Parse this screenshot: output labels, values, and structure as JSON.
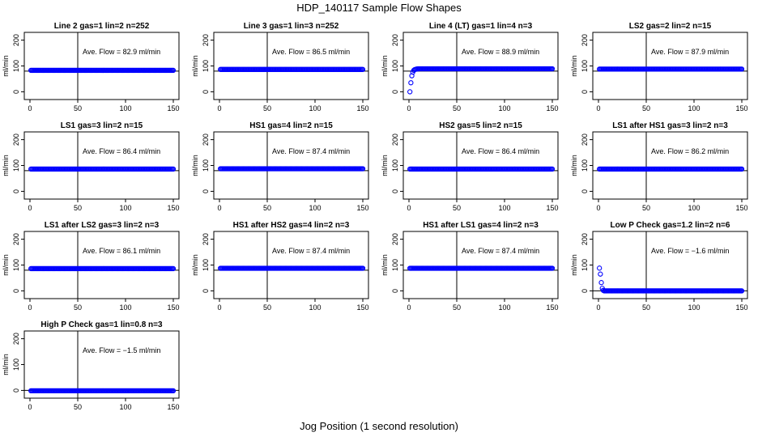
{
  "figure": {
    "title": "HDP_140117  Sample Flow Shapes",
    "xlabel": "Jog Position (1 second resolution)"
  },
  "chart_data": [
    {
      "type": "scatter",
      "title": "Line 2 gas=1 lin=2 n=252",
      "ylabel": "ml/min",
      "annotation": "Ave. Flow =  82.9  ml/min",
      "xlim": [
        0,
        150
      ],
      "ylim": [
        -30,
        230
      ],
      "xticks": [
        0,
        50,
        100,
        150
      ],
      "yticks": [
        0,
        100,
        200
      ],
      "vline": 50,
      "hline": 80,
      "series": [
        {
          "color": "#0000ff",
          "x_range": [
            1,
            150
          ],
          "values": [
            82.9
          ]
        }
      ]
    },
    {
      "type": "scatter",
      "title": "Line 3 gas=1 lin=3 n=252",
      "ylabel": "ml/min",
      "annotation": "Ave. Flow =  86.5  ml/min",
      "xlim": [
        0,
        150
      ],
      "ylim": [
        -30,
        230
      ],
      "xticks": [
        0,
        50,
        100,
        150
      ],
      "yticks": [
        0,
        100,
        200
      ],
      "vline": 50,
      "hline": 80,
      "series": [
        {
          "color": "#0000ff",
          "x_range": [
            1,
            150
          ],
          "values": [
            86.5
          ]
        }
      ]
    },
    {
      "type": "scatter",
      "title": "Line 4 (LT) gas=1 lin=4 n=3",
      "ylabel": "ml/min",
      "annotation": "Ave. Flow =  88.9  ml/min",
      "xlim": [
        0,
        150
      ],
      "ylim": [
        -30,
        230
      ],
      "xticks": [
        0,
        50,
        100,
        150
      ],
      "yticks": [
        0,
        100,
        200
      ],
      "vline": 50,
      "hline": 80,
      "series": [
        {
          "color": "#0000ff",
          "x_range": [
            1,
            150
          ],
          "values": [
            0,
            35,
            62,
            76,
            83,
            86,
            87,
            88,
            88.5,
            89
          ]
        }
      ]
    },
    {
      "type": "scatter",
      "title": "LS2 gas=2 lin=2 n=15",
      "ylabel": "ml/min",
      "annotation": "Ave. Flow =  87.9  ml/min",
      "xlim": [
        0,
        150
      ],
      "ylim": [
        -30,
        230
      ],
      "xticks": [
        0,
        50,
        100,
        150
      ],
      "yticks": [
        0,
        100,
        200
      ],
      "vline": 50,
      "hline": 80,
      "series": [
        {
          "color": "#0000ff",
          "x_range": [
            1,
            150
          ],
          "values": [
            87.9
          ]
        }
      ]
    },
    {
      "type": "scatter",
      "title": "LS1 gas=3 lin=2 n=15",
      "ylabel": "ml/min",
      "annotation": "Ave. Flow =  86.4  ml/min",
      "xlim": [
        0,
        150
      ],
      "ylim": [
        -30,
        230
      ],
      "xticks": [
        0,
        50,
        100,
        150
      ],
      "yticks": [
        0,
        100,
        200
      ],
      "vline": 50,
      "hline": 80,
      "series": [
        {
          "color": "#0000ff",
          "x_range": [
            1,
            150
          ],
          "values": [
            86.4
          ]
        }
      ]
    },
    {
      "type": "scatter",
      "title": "HS1 gas=4 lin=2 n=15",
      "ylabel": "ml/min",
      "annotation": "Ave. Flow =  87.4  ml/min",
      "xlim": [
        0,
        150
      ],
      "ylim": [
        -30,
        230
      ],
      "xticks": [
        0,
        50,
        100,
        150
      ],
      "yticks": [
        0,
        100,
        200
      ],
      "vline": 50,
      "hline": 80,
      "series": [
        {
          "color": "#0000ff",
          "x_range": [
            1,
            150
          ],
          "values": [
            87.4
          ]
        }
      ]
    },
    {
      "type": "scatter",
      "title": "HS2 gas=5 lin=2 n=15",
      "ylabel": "ml/min",
      "annotation": "Ave. Flow =  86.4  ml/min",
      "xlim": [
        0,
        150
      ],
      "ylim": [
        -30,
        230
      ],
      "xticks": [
        0,
        50,
        100,
        150
      ],
      "yticks": [
        0,
        100,
        200
      ],
      "vline": 50,
      "hline": 80,
      "series": [
        {
          "color": "#0000ff",
          "x_range": [
            1,
            150
          ],
          "values": [
            86.4
          ]
        }
      ]
    },
    {
      "type": "scatter",
      "title": "LS1 after HS1 gas=3 lin=2 n=3",
      "ylabel": "ml/min",
      "annotation": "Ave. Flow =  86.2  ml/min",
      "xlim": [
        0,
        150
      ],
      "ylim": [
        -30,
        230
      ],
      "xticks": [
        0,
        50,
        100,
        150
      ],
      "yticks": [
        0,
        100,
        200
      ],
      "vline": 50,
      "hline": 80,
      "series": [
        {
          "color": "#0000ff",
          "x_range": [
            1,
            150
          ],
          "values": [
            86.2
          ]
        }
      ]
    },
    {
      "type": "scatter",
      "title": "LS1 after LS2 gas=3 lin=2 n=3",
      "ylabel": "ml/min",
      "annotation": "Ave. Flow =  86.1  ml/min",
      "xlim": [
        0,
        150
      ],
      "ylim": [
        -30,
        230
      ],
      "xticks": [
        0,
        50,
        100,
        150
      ],
      "yticks": [
        0,
        100,
        200
      ],
      "vline": 50,
      "hline": 80,
      "series": [
        {
          "color": "#0000ff",
          "x_range": [
            1,
            150
          ],
          "values": [
            86.1
          ]
        }
      ]
    },
    {
      "type": "scatter",
      "title": "HS1 after HS2 gas=4 lin=2 n=3",
      "ylabel": "ml/min",
      "annotation": "Ave. Flow =  87.4  ml/min",
      "xlim": [
        0,
        150
      ],
      "ylim": [
        -30,
        230
      ],
      "xticks": [
        0,
        50,
        100,
        150
      ],
      "yticks": [
        0,
        100,
        200
      ],
      "vline": 50,
      "hline": 80,
      "series": [
        {
          "color": "#0000ff",
          "x_range": [
            1,
            150
          ],
          "values": [
            87.4
          ]
        }
      ]
    },
    {
      "type": "scatter",
      "title": "HS1 after LS1 gas=4 lin=2 n=3",
      "ylabel": "ml/min",
      "annotation": "Ave. Flow =  87.4  ml/min",
      "xlim": [
        0,
        150
      ],
      "ylim": [
        -30,
        230
      ],
      "xticks": [
        0,
        50,
        100,
        150
      ],
      "yticks": [
        0,
        100,
        200
      ],
      "vline": 50,
      "hline": 80,
      "series": [
        {
          "color": "#0000ff",
          "x_range": [
            1,
            150
          ],
          "values": [
            87.4
          ]
        }
      ]
    },
    {
      "type": "scatter",
      "title": "Low P Check gas=1.2 lin=2 n=6",
      "ylabel": "ml/min",
      "annotation": "Ave. Flow =  −1.6  ml/min",
      "xlim": [
        0,
        150
      ],
      "ylim": [
        -30,
        230
      ],
      "xticks": [
        0,
        50,
        100,
        150
      ],
      "yticks": [
        0,
        100,
        200
      ],
      "vline": 50,
      "hline": 0,
      "series": [
        {
          "color": "#0000ff",
          "x_range": [
            1,
            150
          ],
          "values": [
            88,
            65,
            32,
            10,
            2,
            0
          ]
        }
      ]
    },
    {
      "type": "scatter",
      "title": "High P Check gas=1 lin=0.8 n=3",
      "ylabel": "ml/min",
      "annotation": "Ave. Flow =  −1.5  ml/min",
      "xlim": [
        0,
        150
      ],
      "ylim": [
        -30,
        230
      ],
      "xticks": [
        0,
        50,
        100,
        150
      ],
      "yticks": [
        0,
        100,
        200
      ],
      "vline": 50,
      "hline": 0,
      "series": [
        {
          "color": "#0000ff",
          "x_range": [
            1,
            150
          ],
          "values": [
            -1.5
          ]
        }
      ]
    }
  ]
}
